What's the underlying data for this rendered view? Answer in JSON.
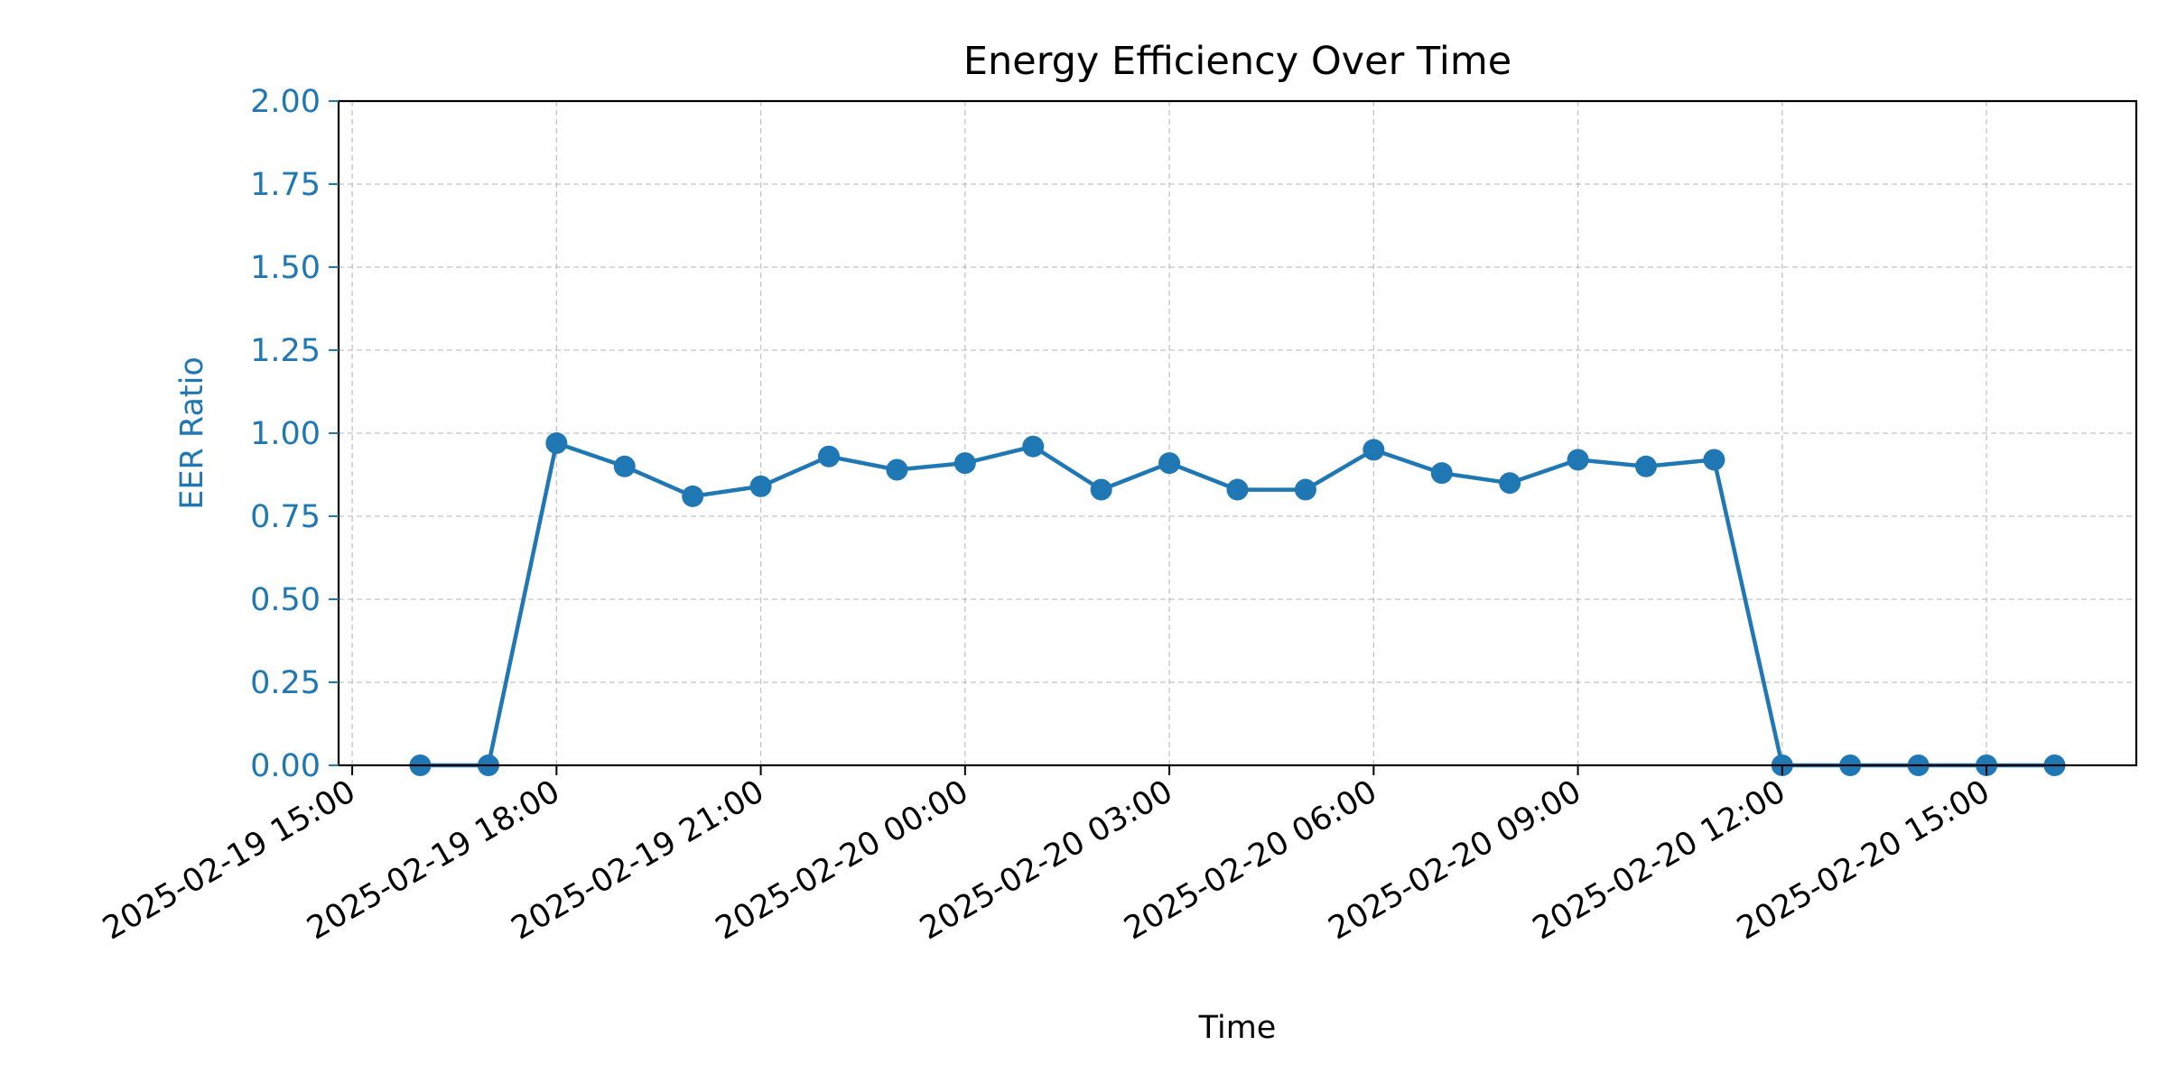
{
  "chart_data": {
    "type": "line",
    "title": "Energy Efficiency Over Time",
    "xlabel": "Time",
    "ylabel": "EER Ratio",
    "ylim": [
      0,
      2
    ],
    "xlim": [
      "2025-02-19 14:48",
      "2025-02-20 17:12"
    ],
    "x_ticks": [
      "2025-02-19 15:00",
      "2025-02-19 18:00",
      "2025-02-19 21:00",
      "2025-02-20 00:00",
      "2025-02-20 03:00",
      "2025-02-20 06:00",
      "2025-02-20 09:00",
      "2025-02-20 12:00",
      "2025-02-20 15:00"
    ],
    "y_ticks": [
      "0.00",
      "0.25",
      "0.50",
      "0.75",
      "1.00",
      "1.25",
      "1.50",
      "1.75",
      "2.00"
    ],
    "grid": true,
    "colors": {
      "series": "#1f77b4",
      "axis_y": "#1f77b4",
      "axis_x": "#000000"
    },
    "series": [
      {
        "x": [
          "2025-02-19 16:00",
          "2025-02-19 17:00",
          "2025-02-19 18:00",
          "2025-02-19 19:00",
          "2025-02-19 20:00",
          "2025-02-19 21:00",
          "2025-02-19 22:00",
          "2025-02-19 23:00",
          "2025-02-20 00:00",
          "2025-02-20 01:00",
          "2025-02-20 02:00",
          "2025-02-20 03:00",
          "2025-02-20 04:00",
          "2025-02-20 05:00",
          "2025-02-20 06:00",
          "2025-02-20 07:00",
          "2025-02-20 08:00",
          "2025-02-20 09:00",
          "2025-02-20 10:00",
          "2025-02-20 11:00",
          "2025-02-20 12:00",
          "2025-02-20 13:00",
          "2025-02-20 14:00",
          "2025-02-20 15:00",
          "2025-02-20 16:00"
        ],
        "values": [
          0.0,
          0.0,
          0.97,
          0.9,
          0.81,
          0.84,
          0.93,
          0.89,
          0.91,
          0.96,
          0.83,
          0.91,
          0.83,
          0.83,
          0.95,
          0.88,
          0.85,
          0.92,
          0.9,
          0.92,
          0.0,
          0.0,
          0.0,
          0.0,
          0.0
        ]
      }
    ]
  }
}
